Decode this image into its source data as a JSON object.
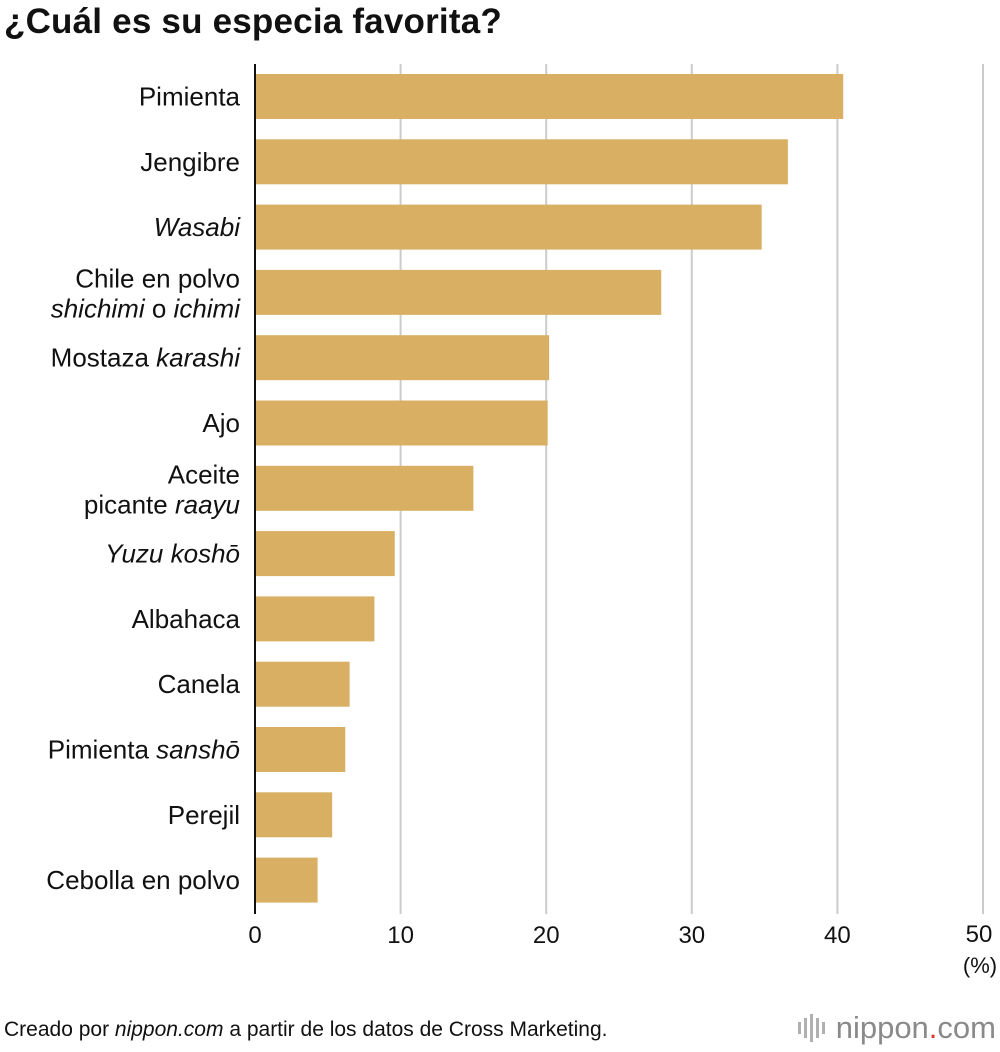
{
  "chart_data": {
    "type": "bar",
    "orientation": "horizontal",
    "title": "¿Cuál es su especia favorita?",
    "categories": [
      "Pimienta",
      "Jengibre",
      "Wasabi",
      "Chile en polvo shichimi o ichimi",
      "Mostaza karashi",
      "Ajo",
      "Aceite picante raayu",
      "Yuzu koshō",
      "Albahaca",
      "Canela",
      "Pimienta sanshō",
      "Perejil",
      "Cebolla en polvo"
    ],
    "category_lines": [
      [
        [
          "Pimienta",
          false
        ]
      ],
      [
        [
          "Jengibre",
          false
        ]
      ],
      [
        [
          "Wasabi",
          true
        ]
      ],
      [
        [
          "Chile en polvo",
          false
        ]
      ],
      [
        [
          "Mostaza ",
          false
        ],
        [
          "karashi",
          true
        ]
      ],
      [
        [
          "Ajo",
          false
        ]
      ],
      [
        [
          "Aceite",
          false
        ]
      ],
      [
        [
          "Yuzu koshō",
          true
        ]
      ],
      [
        [
          "Albahaca",
          false
        ]
      ],
      [
        [
          "Canela",
          false
        ]
      ],
      [
        [
          "Pimienta ",
          false
        ],
        [
          "sanshō",
          true
        ]
      ],
      [
        [
          "Perejil",
          false
        ]
      ],
      [
        [
          "Cebolla en polvo",
          false
        ]
      ]
    ],
    "category_second_lines": {
      "3": [
        [
          "shichimi",
          true
        ],
        [
          " o ",
          false
        ],
        [
          "ichimi",
          true
        ]
      ],
      "6": [
        [
          "picante ",
          false
        ],
        [
          "raayu",
          true
        ]
      ]
    },
    "values": [
      40.4,
      36.6,
      34.8,
      27.9,
      20.2,
      20.1,
      15.0,
      9.6,
      8.2,
      6.5,
      6.2,
      5.3,
      4.3
    ],
    "xlim": [
      0,
      50
    ],
    "xticks": [
      "0",
      "10",
      "20",
      "30",
      "40",
      "50"
    ],
    "xunit": "(%)",
    "grid": true,
    "bar_color": "#d9b063",
    "grid_color": "#cccccc"
  },
  "footer": {
    "prefix": "Creado por ",
    "site": "nippon.com",
    "suffix": " a partir de los datos de Cross Marketing."
  },
  "logo": {
    "name": "nippon",
    "dot": ".",
    "tld": "com"
  }
}
